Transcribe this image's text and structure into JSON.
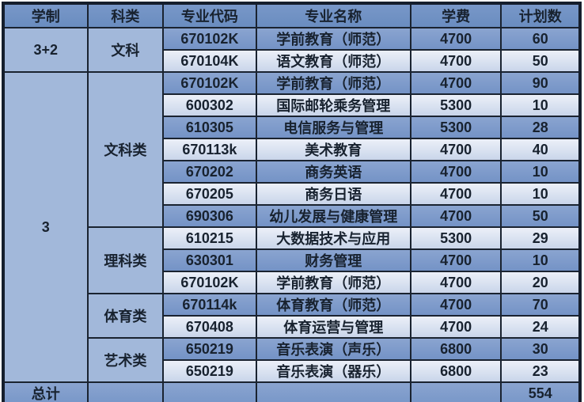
{
  "colors": {
    "border": "#1a2330",
    "header_bg": "#6e90c2",
    "side_cell_bg": "#a2b8da",
    "row_medium_bg": "#7d9cca",
    "row_light_bg": "#dbe3f1",
    "total_row_bg": "#7e9cca",
    "text": "#18222f",
    "page_bg": "#ffffff"
  },
  "table": {
    "headers": [
      "学制",
      "科类",
      "专业代码",
      "专业名称",
      "学费",
      "计划数"
    ],
    "schooling": [
      {
        "label": "3+2",
        "rowspan": 2
      },
      {
        "label": "3",
        "rowspan": 14
      }
    ],
    "categories": [
      {
        "label": "文科",
        "rowspan": 2
      },
      {
        "label": "文科类",
        "rowspan": 7
      },
      {
        "label": "理科类",
        "rowspan": 3
      },
      {
        "label": "体育类",
        "rowspan": 2
      },
      {
        "label": "艺术类",
        "rowspan": 2
      }
    ],
    "rows": [
      {
        "code": "670102K",
        "name": "学前教育（师范）",
        "fee": "4700",
        "plan": "60"
      },
      {
        "code": "670104K",
        "name": "语文教育（师范）",
        "fee": "4700",
        "plan": "50"
      },
      {
        "code": "670102K",
        "name": "学前教育（师范）",
        "fee": "4700",
        "plan": "90"
      },
      {
        "code": "600302",
        "name": "国际邮轮乘务管理",
        "fee": "5300",
        "plan": "10"
      },
      {
        "code": "610305",
        "name": "电信服务与管理",
        "fee": "5300",
        "plan": "28"
      },
      {
        "code": "670113k",
        "name": "美术教育",
        "fee": "4700",
        "plan": "40"
      },
      {
        "code": "670202",
        "name": "商务英语",
        "fee": "4700",
        "plan": "10"
      },
      {
        "code": "670205",
        "name": "商务日语",
        "fee": "4700",
        "plan": "10"
      },
      {
        "code": "690306",
        "name": "幼儿发展与健康管理",
        "fee": "4700",
        "plan": "50"
      },
      {
        "code": "610215",
        "name": "大数据技术与应用",
        "fee": "5300",
        "plan": "29"
      },
      {
        "code": "630301",
        "name": "财务管理",
        "fee": "4700",
        "plan": "10"
      },
      {
        "code": "670102K",
        "name": "学前教育（师范）",
        "fee": "4700",
        "plan": "20"
      },
      {
        "code": "670114k",
        "name": "体育教育（师范）",
        "fee": "4700",
        "plan": "70"
      },
      {
        "code": "670408",
        "name": "体育运营与管理",
        "fee": "4700",
        "plan": "24"
      },
      {
        "code": "650219",
        "name": "音乐表演（声乐）",
        "fee": "6800",
        "plan": "30"
      },
      {
        "code": "650219",
        "name": "音乐表演（器乐）",
        "fee": "6800",
        "plan": "23"
      }
    ],
    "footer": {
      "label": "总计",
      "total": "554"
    }
  }
}
